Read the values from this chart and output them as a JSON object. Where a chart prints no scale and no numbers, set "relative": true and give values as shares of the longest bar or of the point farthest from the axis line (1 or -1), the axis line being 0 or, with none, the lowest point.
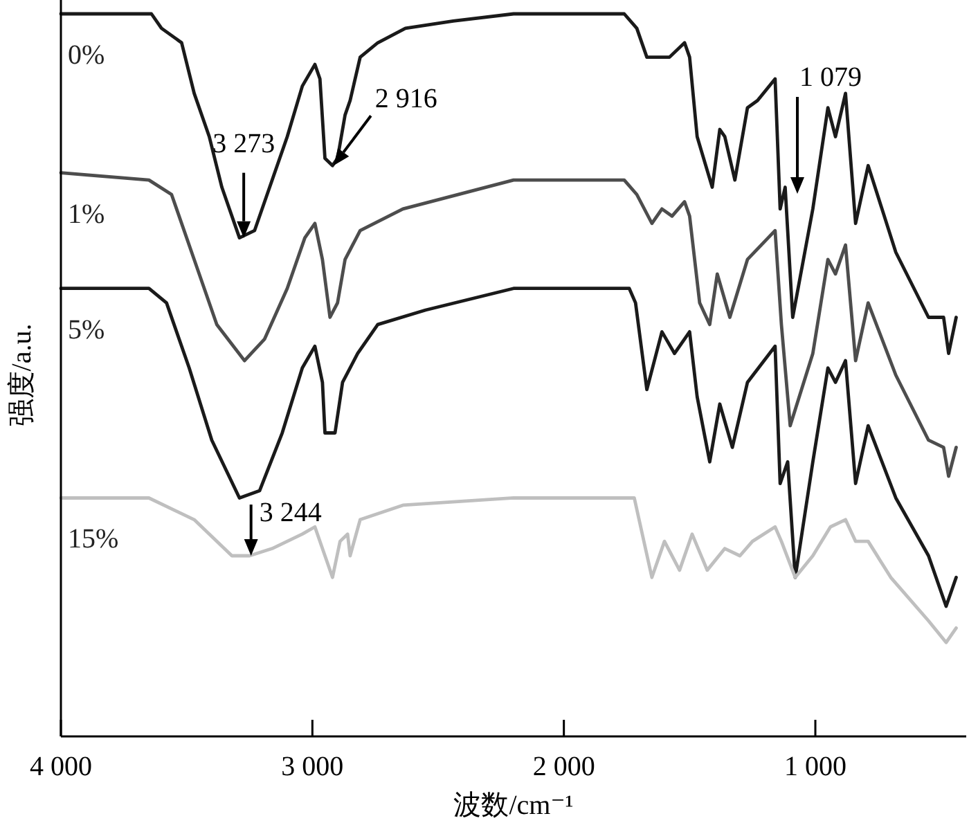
{
  "chart_data": {
    "type": "line",
    "relative": true,
    "xlabel": "波数/cm⁻¹",
    "ylabel": "强度/a.u.",
    "xlim": [
      4000,
      400
    ],
    "xticks": [
      {
        "value": 4000,
        "label": "4 000"
      },
      {
        "value": 3000,
        "label": "3 000"
      },
      {
        "value": 2000,
        "label": "2 000"
      },
      {
        "value": 1000,
        "label": "1 000"
      }
    ],
    "series": [
      {
        "name": "0%",
        "color": "#1a1a1a",
        "x": [
          4000,
          3780,
          3750,
          3640,
          3600,
          3520,
          3470,
          3410,
          3360,
          3290,
          3230,
          3180,
          3100,
          3040,
          2990,
          2970,
          2950,
          2920,
          2900,
          2870,
          2850,
          2810,
          2740,
          2630,
          2440,
          2200,
          1760,
          1710,
          1670,
          1610,
          1580,
          1520,
          1500,
          1470,
          1410,
          1380,
          1360,
          1320,
          1270,
          1230,
          1160,
          1140,
          1120,
          1090,
          1010,
          950,
          920,
          880,
          840,
          790,
          680,
          550,
          490,
          470,
          440
        ],
        "values": [
          1.0,
          1.0,
          1.0,
          1.0,
          0.98,
          0.96,
          0.89,
          0.83,
          0.76,
          0.69,
          0.7,
          0.75,
          0.83,
          0.9,
          0.93,
          0.91,
          0.8,
          0.79,
          0.8,
          0.86,
          0.88,
          0.94,
          0.96,
          0.98,
          0.99,
          1.0,
          1.0,
          0.98,
          0.94,
          0.94,
          0.94,
          0.96,
          0.94,
          0.83,
          0.76,
          0.84,
          0.83,
          0.77,
          0.87,
          0.88,
          0.91,
          0.73,
          0.76,
          0.58,
          0.73,
          0.87,
          0.83,
          0.89,
          0.71,
          0.79,
          0.67,
          0.58,
          0.58,
          0.53,
          0.58
        ]
      },
      {
        "name": "1%",
        "color": "#4d4d4d",
        "x": [
          4000,
          3650,
          3560,
          3470,
          3380,
          3270,
          3190,
          3100,
          3030,
          2990,
          2960,
          2930,
          2900,
          2870,
          2810,
          2640,
          2200,
          1760,
          1710,
          1650,
          1610,
          1570,
          1520,
          1500,
          1460,
          1420,
          1390,
          1340,
          1270,
          1160,
          1135,
          1100,
          1010,
          950,
          920,
          880,
          840,
          790,
          680,
          550,
          490,
          470,
          440
        ],
        "values": [
          0.78,
          0.77,
          0.75,
          0.66,
          0.57,
          0.52,
          0.55,
          0.62,
          0.69,
          0.71,
          0.66,
          0.58,
          0.6,
          0.66,
          0.7,
          0.73,
          0.77,
          0.77,
          0.75,
          0.71,
          0.73,
          0.72,
          0.74,
          0.72,
          0.6,
          0.57,
          0.64,
          0.58,
          0.66,
          0.7,
          0.57,
          0.43,
          0.53,
          0.66,
          0.64,
          0.68,
          0.52,
          0.6,
          0.5,
          0.41,
          0.4,
          0.36,
          0.4
        ]
      },
      {
        "name": "5%",
        "color": "#1a1a1a",
        "x": [
          4000,
          3650,
          3580,
          3490,
          3400,
          3290,
          3210,
          3120,
          3040,
          2990,
          2960,
          2950,
          2910,
          2880,
          2820,
          2740,
          2550,
          2200,
          1740,
          1715,
          1670,
          1610,
          1560,
          1500,
          1470,
          1420,
          1380,
          1330,
          1270,
          1160,
          1140,
          1110,
          1080,
          1010,
          950,
          920,
          880,
          840,
          790,
          680,
          550,
          480,
          440
        ],
        "values": [
          0.62,
          0.62,
          0.6,
          0.51,
          0.41,
          0.33,
          0.34,
          0.42,
          0.51,
          0.54,
          0.49,
          0.42,
          0.42,
          0.49,
          0.53,
          0.57,
          0.59,
          0.62,
          0.62,
          0.6,
          0.48,
          0.56,
          0.53,
          0.56,
          0.47,
          0.38,
          0.46,
          0.4,
          0.49,
          0.54,
          0.35,
          0.38,
          0.22,
          0.38,
          0.51,
          0.49,
          0.52,
          0.35,
          0.43,
          0.33,
          0.25,
          0.18,
          0.22
        ]
      },
      {
        "name": "15%",
        "color": "#bfbfbf",
        "x": [
          4000,
          3650,
          3470,
          3320,
          3250,
          3160,
          3040,
          2990,
          2950,
          2920,
          2890,
          2860,
          2850,
          2810,
          2640,
          2200,
          1720,
          1650,
          1600,
          1540,
          1490,
          1430,
          1360,
          1300,
          1250,
          1160,
          1135,
          1080,
          1010,
          940,
          880,
          840,
          790,
          700,
          550,
          480,
          440
        ],
        "values": [
          0.33,
          0.33,
          0.3,
          0.25,
          0.25,
          0.26,
          0.28,
          0.29,
          0.25,
          0.22,
          0.27,
          0.28,
          0.25,
          0.3,
          0.32,
          0.33,
          0.33,
          0.22,
          0.27,
          0.23,
          0.28,
          0.23,
          0.26,
          0.25,
          0.27,
          0.29,
          0.27,
          0.22,
          0.25,
          0.29,
          0.3,
          0.27,
          0.27,
          0.22,
          0.16,
          0.13,
          0.15
        ]
      }
    ],
    "annotations": [
      {
        "text": "3 273",
        "x": 3273,
        "y": 0.69
      },
      {
        "text": "2 916",
        "x": 2916,
        "y": 0.79
      },
      "1 079",
      {
        "text": "3 244",
        "x": 3244,
        "y": 0.25
      }
    ]
  }
}
